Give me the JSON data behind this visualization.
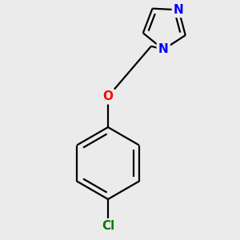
{
  "background_color": "#ebebeb",
  "bond_color": "#000000",
  "N_color": "#0000ff",
  "O_color": "#ff0000",
  "Cl_color": "#008000",
  "line_width": 1.6,
  "font_size_atom": 11,
  "fig_size": [
    3.0,
    3.0
  ],
  "dpi": 100,
  "xlim": [
    0.0,
    10.0
  ],
  "ylim": [
    0.0,
    10.0
  ]
}
